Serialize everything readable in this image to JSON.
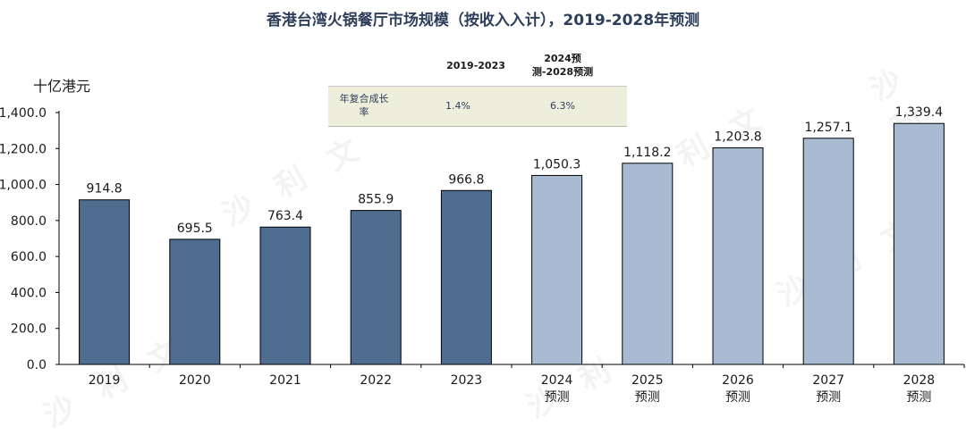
{
  "title": "香港台湾火锅餐厅市场规模（按收入入计），2019-2028年预测",
  "unit_label": "十亿港元",
  "cagr_table": {
    "headers": [
      "",
      "2019-2023",
      "2024预测-2028预测"
    ],
    "row_label": "年复合成长率",
    "values": [
      "1.4%",
      "6.3%"
    ]
  },
  "colors": {
    "actual": "#4f6d8f",
    "forecast": "#a9bbd2",
    "title": "#2e3f5c"
  },
  "chart_data": {
    "type": "bar",
    "categories": [
      "2019",
      "2020",
      "2021",
      "2022",
      "2023",
      "2024\n预测",
      "2025\n预测",
      "2026\n预测",
      "2027\n预测",
      "2028\n预测"
    ],
    "values": [
      914.8,
      695.5,
      763.4,
      855.9,
      966.8,
      1050.3,
      1118.2,
      1203.8,
      1257.1,
      1339.4
    ],
    "value_labels": [
      "914.8",
      "695.5",
      "763.4",
      "855.9",
      "966.8",
      "1,050.3",
      "1,118.2",
      "1,203.8",
      "1,257.1",
      "1,339.4"
    ],
    "forecast_flags": [
      false,
      false,
      false,
      false,
      false,
      true,
      true,
      true,
      true,
      true
    ],
    "ylim": [
      0,
      1400
    ],
    "yticks": [
      "0.0",
      "200.0",
      "400.0",
      "600.0",
      "800.0",
      "1,000.0",
      "1,200.0",
      "1,400.0"
    ],
    "ytick_values": [
      0,
      200,
      400,
      600,
      800,
      1000,
      1200,
      1400
    ],
    "ylabel": "十亿港元",
    "grid": false
  }
}
